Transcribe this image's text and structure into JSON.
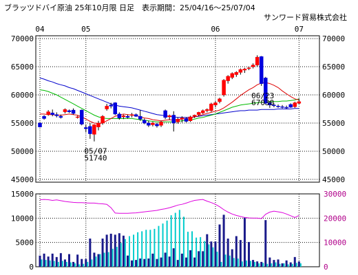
{
  "header": {
    "title": "ブラッツドバイ原油 25年10月限 日足　表示期間：25/04/16～25/07/04",
    "source": "サンワード貿易株式会社"
  },
  "colors": {
    "up": "#ff0000",
    "down": "#0000dd",
    "ma_short": "#dd0000",
    "ma_mid": "#00bb00",
    "ma_long": "#0000cc",
    "volume": "#1a1a8a",
    "open_interest": "#00cccc",
    "oi_line": "#dd00dd",
    "frame": "#000000"
  },
  "chart_data": [
    {
      "type": "candlestick",
      "x_labels": [
        {
          "text": "04",
          "index": 0
        },
        {
          "text": "05",
          "index": 11
        },
        {
          "text": "06",
          "index": 42
        },
        {
          "text": "07",
          "index": 62
        }
      ],
      "ylim": [
        44500,
        70500
      ],
      "yticks": [
        "70000",
        "65000",
        "60000",
        "55000",
        "50000",
        "45000"
      ],
      "annotations": [
        {
          "date": "05/07",
          "value": "51740",
          "index": 13
        },
        {
          "date": "06/23",
          "value": "67030",
          "index": 53
        }
      ],
      "candles": [
        [
          55000,
          55200,
          54200,
          54300
        ],
        [
          56200,
          56400,
          55600,
          55800
        ],
        [
          56500,
          57300,
          56300,
          57000
        ],
        [
          56800,
          57400,
          56200,
          56500
        ],
        [
          56500,
          56900,
          56000,
          56300
        ],
        [
          56200,
          56500,
          55800,
          56000
        ],
        [
          57000,
          57600,
          56700,
          57400
        ],
        [
          57200,
          57400,
          56800,
          57000
        ],
        [
          57300,
          57600,
          56500,
          56700
        ],
        [
          56000,
          56300,
          55800,
          56100
        ],
        [
          57300,
          57400,
          54600,
          54800
        ],
        [
          54200,
          54700,
          53400,
          54000
        ],
        [
          54400,
          55000,
          52200,
          53100
        ],
        [
          53000,
          54800,
          51740,
          54700
        ],
        [
          54300,
          55400,
          53700,
          55000
        ],
        [
          55000,
          56400,
          54700,
          56200
        ],
        [
          57500,
          58400,
          57200,
          58000
        ],
        [
          58200,
          58600,
          57600,
          58000
        ],
        [
          58600,
          58700,
          56400,
          56600
        ],
        [
          56600,
          56900,
          55600,
          55900
        ],
        [
          56100,
          56500,
          55700,
          56300
        ],
        [
          56200,
          56500,
          55800,
          56000
        ],
        [
          56400,
          56800,
          56000,
          56500
        ],
        [
          56500,
          56700,
          56100,
          56200
        ],
        [
          56200,
          57300,
          55400,
          55700
        ],
        [
          55500,
          55800,
          54800,
          55000
        ],
        [
          55000,
          55400,
          54300,
          54600
        ],
        [
          54700,
          55200,
          54400,
          55000
        ],
        [
          54800,
          55000,
          54200,
          54500
        ],
        [
          54600,
          55400,
          54300,
          55200
        ],
        [
          57200,
          57400,
          55700,
          56000
        ],
        [
          56100,
          56500,
          55600,
          56300
        ],
        [
          56400,
          57100,
          53500,
          55000
        ],
        [
          55200,
          56000,
          54900,
          55700
        ],
        [
          55700,
          56200,
          55100,
          55900
        ],
        [
          55800,
          56000,
          55100,
          55300
        ],
        [
          55400,
          56300,
          55200,
          56100
        ],
        [
          56200,
          56500,
          55900,
          56400
        ],
        [
          56500,
          57000,
          56200,
          56900
        ],
        [
          56800,
          57400,
          56600,
          57200
        ],
        [
          57200,
          57600,
          56900,
          57400
        ],
        [
          57200,
          58600,
          57000,
          58400
        ],
        [
          58200,
          58900,
          57800,
          58600
        ],
        [
          58800,
          59500,
          58500,
          59300
        ],
        [
          60000,
          62800,
          59700,
          62600
        ],
        [
          62500,
          63500,
          62000,
          63300
        ],
        [
          63100,
          64000,
          62800,
          63800
        ],
        [
          63600,
          64200,
          63200,
          64000
        ],
        [
          64000,
          64700,
          63600,
          64500
        ],
        [
          64400,
          64800,
          63900,
          64600
        ],
        [
          64700,
          65000,
          64400,
          64800
        ],
        [
          65000,
          65600,
          64700,
          65300
        ],
        [
          65300,
          67030,
          65000,
          66700
        ],
        [
          66800,
          66900,
          61600,
          62000
        ],
        [
          63000,
          63200,
          58300,
          58500
        ],
        [
          58600,
          58900,
          57700,
          58200
        ],
        [
          58200,
          58500,
          57800,
          58100
        ],
        [
          58000,
          58300,
          57700,
          57900
        ],
        [
          57900,
          58200,
          57600,
          57800
        ],
        [
          57800,
          58100,
          57500,
          57700
        ],
        [
          58300,
          58500,
          57700,
          57800
        ],
        [
          57900,
          58800,
          57700,
          58600
        ],
        [
          58500,
          59300,
          58300,
          58800
        ]
      ],
      "ma_short": [
        56600,
        56600,
        56500,
        56500,
        56400,
        56400,
        56500,
        56600,
        56500,
        56400,
        56100,
        55700,
        55300,
        55000,
        54900,
        55000,
        55400,
        55800,
        56200,
        56400,
        56600,
        56500,
        56400,
        56300,
        56100,
        55900,
        55800,
        55600,
        55500,
        55400,
        55500,
        55600,
        55500,
        55600,
        55700,
        55800,
        55900,
        56100,
        56300,
        56500,
        56700,
        56900,
        57100,
        57300,
        57700,
        58200,
        58700,
        59300,
        59900,
        60400,
        60900,
        61300,
        61800,
        62100,
        62200,
        62000,
        61700,
        61300,
        60700,
        60200,
        59700,
        59300,
        59100
      ],
      "ma_mid": [
        60900,
        60800,
        60600,
        60300,
        60000,
        59600,
        59200,
        58800,
        58400,
        58000,
        57600,
        57200,
        56800,
        56400,
        56100,
        55900,
        55800,
        55800,
        55800,
        55800,
        55800,
        55800,
        55800,
        55700,
        55600,
        55500,
        55400,
        55300,
        55200,
        55200,
        55200,
        55200,
        55200,
        55300,
        55400,
        55500,
        55600,
        55700,
        55900,
        56000,
        56200,
        56400,
        56600,
        56900,
        57200,
        57500,
        57800,
        58000,
        58200,
        58300,
        58400,
        58500,
        58600,
        58700,
        58700,
        58800,
        58800,
        58800,
        58900,
        58900,
        59000,
        59100,
        59300
      ],
      "ma_long": [
        63000,
        62800,
        62500,
        62300,
        62000,
        61800,
        61600,
        61300,
        61100,
        60800,
        60500,
        60200,
        59900,
        59600,
        59300,
        59000,
        58700,
        58400,
        58200,
        58000,
        57900,
        57800,
        57700,
        57500,
        57300,
        57100,
        56900,
        56700,
        56500,
        56400,
        56300,
        56200,
        56100,
        56000,
        56000,
        56000,
        56000,
        56100,
        56200,
        56300,
        56400,
        56500,
        56600,
        56700,
        56800,
        56900,
        57000,
        57100,
        57200,
        57200,
        57300,
        57300,
        57300,
        57400,
        57400,
        57400,
        57400,
        57500,
        57500,
        57500,
        57500,
        57600,
        57600
      ]
    },
    {
      "type": "bar+line",
      "ylim_left": [
        0,
        15000
      ],
      "ylim_right": [
        0,
        30000
      ],
      "yticks_left": [
        "15000",
        "10000",
        "5000",
        "0"
      ],
      "yticks_right": [
        "30000",
        "20000",
        "10000",
        "0"
      ],
      "volume": [
        2300,
        2700,
        2100,
        2700,
        2000,
        2800,
        1500,
        2600,
        1000,
        2500,
        1600,
        1600,
        5800,
        2900,
        2600,
        5800,
        6600,
        6800,
        6600,
        6900,
        6400,
        2300,
        1300,
        1400,
        1700,
        1600,
        1700,
        2700,
        1600,
        1900,
        2900,
        2100,
        3800,
        1400,
        2700,
        1900,
        3400,
        1900,
        3200,
        3200,
        6700,
        5200,
        5200,
        8700,
        10700,
        5800,
        3600,
        6300,
        5500,
        10100,
        5100,
        1400,
        1100,
        1000,
        9600,
        1900,
        1400,
        1500,
        700,
        1300,
        900,
        2000,
        1100
      ],
      "open_interest": [
        1500,
        1400,
        1300,
        1200,
        1000,
        1200,
        1000,
        900,
        700,
        500,
        600,
        1000,
        1500,
        2100,
        2600,
        2900,
        3000,
        3700,
        4100,
        4900,
        5700,
        6300,
        6600,
        7100,
        7300,
        7600,
        7600,
        7800,
        8400,
        8900,
        9500,
        10600,
        11100,
        11700,
        10300,
        7200,
        7300,
        6000,
        6100,
        5300,
        4600,
        4000,
        3100,
        1000,
        2500,
        2300,
        1800,
        1700,
        1100,
        1300,
        1200,
        1000,
        700,
        800,
        600,
        700,
        900,
        600,
        700,
        500,
        600,
        800,
        700
      ],
      "oi_line": [
        27600,
        27700,
        27600,
        27300,
        27500,
        27200,
        26900,
        26700,
        26500,
        26400,
        26400,
        26300,
        26200,
        26200,
        26000,
        25900,
        25700,
        24300,
        22100,
        22000,
        22000,
        22000,
        22100,
        22200,
        22400,
        22600,
        22800,
        23000,
        23200,
        23600,
        23900,
        24300,
        24800,
        25400,
        25700,
        26200,
        26800,
        27300,
        27500,
        27700,
        27000,
        26400,
        25700,
        24700,
        23500,
        22500,
        21700,
        21100,
        20700,
        20300,
        20100,
        20000,
        20000,
        19800,
        21600,
        22500,
        22900,
        22600,
        22300,
        21700,
        21000,
        20300,
        21100
      ]
    }
  ]
}
